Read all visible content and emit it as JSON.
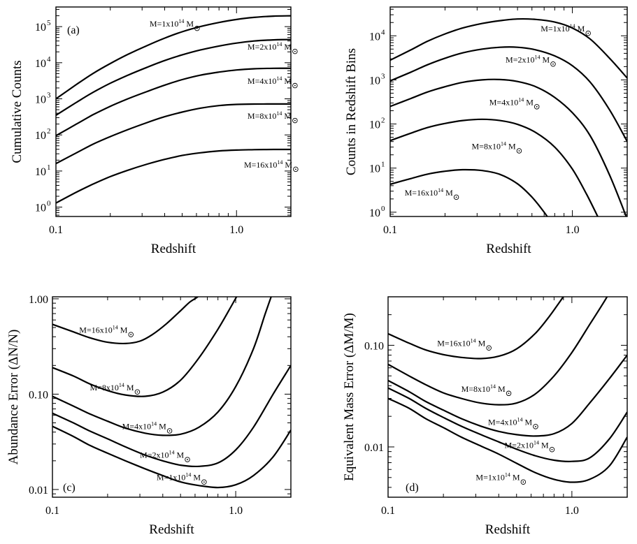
{
  "chart_data": [
    {
      "id": "a",
      "type": "line",
      "panel_label": "(a)",
      "xlabel": "Redshift",
      "ylabel": "Cumulative Counts",
      "xscale": "log",
      "yscale": "log",
      "xlim": [
        0.1,
        2.0
      ],
      "ylim": [
        0.55,
        350000
      ],
      "x_ticks": [
        {
          "value": 0.1,
          "label": "0.1"
        },
        {
          "value": 1.0,
          "label": "1.0"
        }
      ],
      "y_ticks": [
        {
          "value": 1,
          "base": "10",
          "exp": "0"
        },
        {
          "value": 10,
          "base": "10",
          "exp": "1"
        },
        {
          "value": 100,
          "base": "10",
          "exp": "2"
        },
        {
          "value": 1000,
          "base": "10",
          "exp": "3"
        },
        {
          "value": 10000,
          "base": "10",
          "exp": "4"
        },
        {
          "value": 100000,
          "base": "10",
          "exp": "5"
        }
      ],
      "series": [
        {
          "label": {
            "pre": "M=1x10",
            "exp": "14",
            "post": " M"
          },
          "label_at": [
            0.33,
            100000
          ],
          "x": [
            0.1,
            0.13,
            0.16,
            0.2,
            0.25,
            0.32,
            0.4,
            0.5,
            0.63,
            0.8,
            1.0,
            1.25,
            1.6,
            2.0
          ],
          "y": [
            1000,
            2500,
            5000,
            9500,
            17000,
            30000,
            48000,
            72000,
            100000,
            130000,
            158000,
            180000,
            195000,
            200000
          ]
        },
        {
          "label": {
            "pre": "M=2x10",
            "exp": "14",
            "post": " M"
          },
          "label_at": [
            1.15,
            23000
          ],
          "x": [
            0.1,
            0.13,
            0.16,
            0.2,
            0.25,
            0.32,
            0.4,
            0.5,
            0.63,
            0.8,
            1.0,
            1.25,
            1.6,
            2.0
          ],
          "y": [
            350,
            800,
            1500,
            2700,
            4500,
            7500,
            11500,
            16500,
            22500,
            29000,
            35000,
            40000,
            43000,
            44000
          ]
        },
        {
          "label": {
            "pre": "M=4x10",
            "exp": "14",
            "post": " M"
          },
          "label_at": [
            1.15,
            2600
          ],
          "x": [
            0.1,
            0.13,
            0.16,
            0.2,
            0.25,
            0.32,
            0.4,
            0.5,
            0.63,
            0.8,
            1.0,
            1.25,
            1.6,
            2.0
          ],
          "y": [
            95,
            200,
            360,
            620,
            1000,
            1600,
            2400,
            3400,
            4500,
            5500,
            6300,
            6800,
            7000,
            7000
          ]
        },
        {
          "label": {
            "pre": "M=8x10",
            "exp": "14",
            "post": " M"
          },
          "label_at": [
            1.15,
            280
          ],
          "x": [
            0.1,
            0.13,
            0.16,
            0.2,
            0.25,
            0.32,
            0.4,
            0.5,
            0.63,
            0.8,
            1.0,
            1.25,
            1.6,
            2.0
          ],
          "y": [
            16,
            32,
            55,
            90,
            140,
            220,
            320,
            430,
            550,
            650,
            700,
            715,
            720,
            720
          ]
        },
        {
          "label": {
            "pre": "M=16x10",
            "exp": "14",
            "post": " M"
          },
          "label_at": [
            1.1,
            12.5
          ],
          "x": [
            0.1,
            0.13,
            0.16,
            0.2,
            0.25,
            0.32,
            0.4,
            0.5,
            0.63,
            0.8,
            1.0,
            1.25,
            1.6,
            2.0
          ],
          "y": [
            1.3,
            2.6,
            4.3,
            7,
            10.5,
            15.5,
            21,
            27,
            32,
            36,
            38,
            39,
            39.5,
            39.5
          ]
        }
      ]
    },
    {
      "id": "b",
      "type": "line",
      "panel_label": "",
      "xlabel": "Redshift",
      "ylabel": "Counts in Redshift Bins",
      "xscale": "log",
      "yscale": "log",
      "xlim": [
        0.1,
        2.0
      ],
      "ylim": [
        0.8,
        45000
      ],
      "x_ticks": [
        {
          "value": 0.1,
          "label": "0.1"
        },
        {
          "value": 1.0,
          "label": "1.0"
        }
      ],
      "y_ticks": [
        {
          "value": 1,
          "base": "10",
          "exp": "0"
        },
        {
          "value": 10,
          "base": "10",
          "exp": "1"
        },
        {
          "value": 100,
          "base": "10",
          "exp": "2"
        },
        {
          "value": 1000,
          "base": "10",
          "exp": "3"
        },
        {
          "value": 10000,
          "base": "10",
          "exp": "4"
        }
      ],
      "series": [
        {
          "label": {
            "pre": "M=1x10",
            "exp": "14",
            "post": " M"
          },
          "label_at": [
            0.67,
            12500
          ],
          "x": [
            0.1,
            0.13,
            0.16,
            0.2,
            0.25,
            0.32,
            0.4,
            0.5,
            0.63,
            0.8,
            1.0,
            1.25,
            1.6,
            2.0
          ],
          "y": [
            2800,
            4800,
            7500,
            11000,
            15000,
            19000,
            22000,
            24000,
            23500,
            20500,
            15000,
            8500,
            3100,
            1100
          ]
        },
        {
          "label": {
            "pre": "M=2x10",
            "exp": "14",
            "post": " M"
          },
          "label_at": [
            0.43,
            2500
          ],
          "x": [
            0.1,
            0.13,
            0.16,
            0.2,
            0.25,
            0.32,
            0.4,
            0.5,
            0.63,
            0.8,
            1.0,
            1.25,
            1.6,
            2.0
          ],
          "y": [
            950,
            1500,
            2200,
            3100,
            4100,
            5000,
            5500,
            5500,
            4800,
            3500,
            2100,
            900,
            210,
            40
          ]
        },
        {
          "label": {
            "pre": "M=4x10",
            "exp": "14",
            "post": " M"
          },
          "label_at": [
            0.35,
            270
          ],
          "x": [
            0.1,
            0.13,
            0.16,
            0.2,
            0.25,
            0.32,
            0.4,
            0.5,
            0.63,
            0.8,
            1.0,
            1.25,
            1.6,
            2.0
          ],
          "y": [
            250,
            380,
            530,
            700,
            880,
            1000,
            1020,
            920,
            700,
            400,
            180,
            55,
            7,
            0.7
          ]
        },
        {
          "label": {
            "pre": "M=8x10",
            "exp": "14",
            "post": " M"
          },
          "label_at": [
            0.28,
            27
          ],
          "x": [
            0.1,
            0.13,
            0.16,
            0.2,
            0.25,
            0.32,
            0.4,
            0.5,
            0.63,
            0.8,
            1.0,
            1.2,
            1.4
          ],
          "y": [
            42,
            62,
            83,
            103,
            120,
            128,
            120,
            98,
            64,
            30,
            9.5,
            2.5,
            0.7
          ]
        },
        {
          "label": {
            "pre": "M=16x10",
            "exp": "14",
            "post": " M"
          },
          "label_at": [
            0.12,
            2.4
          ],
          "x": [
            0.1,
            0.13,
            0.16,
            0.2,
            0.25,
            0.32,
            0.4,
            0.5,
            0.6,
            0.7,
            0.8
          ],
          "y": [
            4.3,
            5.8,
            7.3,
            8.5,
            9.2,
            8.8,
            7.2,
            4.4,
            2.2,
            1.0,
            0.45
          ]
        }
      ]
    },
    {
      "id": "c",
      "type": "line",
      "panel_label": "(c)",
      "xlabel": "Redshift",
      "ylabel": "Abundance Error (ΔN/N)",
      "xscale": "log",
      "yscale": "log",
      "xlim": [
        0.1,
        2.0
      ],
      "ylim": [
        0.0083,
        1.05
      ],
      "x_ticks": [
        {
          "value": 0.1,
          "label": "0.1"
        },
        {
          "value": 1.0,
          "label": "1.0"
        }
      ],
      "y_ticks": [
        {
          "value": 0.01,
          "label": "0.01"
        },
        {
          "value": 0.1,
          "label": "0.10"
        },
        {
          "value": 1.0,
          "label": "1.00"
        }
      ],
      "series": [
        {
          "label": {
            "pre": "M=16x10",
            "exp": "14",
            "post": " M"
          },
          "label_at": [
            0.14,
            0.44
          ],
          "x": [
            0.1,
            0.13,
            0.16,
            0.2,
            0.25,
            0.3,
            0.35,
            0.42,
            0.5,
            0.56,
            0.62,
            0.66
          ],
          "y": [
            0.54,
            0.45,
            0.39,
            0.35,
            0.34,
            0.36,
            0.42,
            0.55,
            0.75,
            0.92,
            1.05,
            1.2
          ]
        },
        {
          "label": {
            "pre": "M=8x10",
            "exp": "14",
            "post": " M"
          },
          "label_at": [
            0.16,
            0.11
          ],
          "x": [
            0.1,
            0.13,
            0.16,
            0.2,
            0.25,
            0.32,
            0.4,
            0.5,
            0.63,
            0.8,
            0.95,
            1.05
          ],
          "y": [
            0.19,
            0.155,
            0.128,
            0.109,
            0.098,
            0.095,
            0.105,
            0.14,
            0.24,
            0.48,
            0.85,
            1.2
          ]
        },
        {
          "label": {
            "pre": "M=4x10",
            "exp": "14",
            "post": " M"
          },
          "label_at": [
            0.24,
            0.043
          ],
          "x": [
            0.1,
            0.13,
            0.16,
            0.2,
            0.25,
            0.32,
            0.4,
            0.5,
            0.63,
            0.8,
            1.0,
            1.25,
            1.45,
            1.6
          ],
          "y": [
            0.095,
            0.075,
            0.062,
            0.052,
            0.044,
            0.039,
            0.037,
            0.038,
            0.045,
            0.065,
            0.12,
            0.3,
            0.7,
            1.2
          ]
        },
        {
          "label": {
            "pre": "M=2x10",
            "exp": "14",
            "post": " M"
          },
          "label_at": [
            0.3,
            0.0215
          ],
          "x": [
            0.1,
            0.13,
            0.16,
            0.2,
            0.25,
            0.32,
            0.4,
            0.5,
            0.63,
            0.8,
            1.0,
            1.25,
            1.6,
            2.0
          ],
          "y": [
            0.063,
            0.05,
            0.041,
            0.034,
            0.028,
            0.023,
            0.02,
            0.018,
            0.0175,
            0.019,
            0.026,
            0.045,
            0.1,
            0.2
          ]
        },
        {
          "label": {
            "pre": "M=1x10",
            "exp": "14",
            "post": " M"
          },
          "label_at": [
            0.37,
            0.0125
          ],
          "x": [
            0.1,
            0.13,
            0.16,
            0.2,
            0.25,
            0.32,
            0.4,
            0.5,
            0.63,
            0.8,
            1.0,
            1.25,
            1.6,
            2.0
          ],
          "y": [
            0.046,
            0.036,
            0.029,
            0.024,
            0.02,
            0.0165,
            0.014,
            0.012,
            0.011,
            0.0105,
            0.0112,
            0.014,
            0.022,
            0.042
          ]
        }
      ]
    },
    {
      "id": "d",
      "type": "line",
      "panel_label": "(d)",
      "xlabel": "Redshift",
      "ylabel": "Equivalent Mass Error (ΔM/M)",
      "xscale": "log",
      "yscale": "log",
      "xlim": [
        0.1,
        2.0
      ],
      "ylim": [
        0.0032,
        0.3
      ],
      "x_ticks": [
        {
          "value": 0.1,
          "label": "0.1"
        },
        {
          "value": 1.0,
          "label": "1.0"
        }
      ],
      "y_ticks": [
        {
          "value": 0.01,
          "label": "0.01"
        },
        {
          "value": 0.1,
          "label": "0.10"
        }
      ],
      "series": [
        {
          "label": {
            "pre": "M=16x10",
            "exp": "14",
            "post": " M"
          },
          "label_at": [
            0.185,
            0.098
          ],
          "x": [
            0.1,
            0.13,
            0.16,
            0.2,
            0.25,
            0.32,
            0.4,
            0.5,
            0.63,
            0.75,
            0.85,
            0.92
          ],
          "y": [
            0.13,
            0.105,
            0.09,
            0.081,
            0.076,
            0.074,
            0.078,
            0.092,
            0.13,
            0.19,
            0.26,
            0.32
          ]
        },
        {
          "label": {
            "pre": "M=8x10",
            "exp": "14",
            "post": " M"
          },
          "label_at": [
            0.25,
            0.035
          ],
          "x": [
            0.1,
            0.13,
            0.16,
            0.2,
            0.25,
            0.32,
            0.4,
            0.5,
            0.63,
            0.8,
            1.0,
            1.25,
            1.5,
            1.6
          ],
          "y": [
            0.065,
            0.05,
            0.041,
            0.034,
            0.03,
            0.027,
            0.026,
            0.027,
            0.033,
            0.05,
            0.085,
            0.16,
            0.27,
            0.33
          ]
        },
        {
          "label": {
            "pre": "M=4x10",
            "exp": "14",
            "post": " M"
          },
          "label_at": [
            0.35,
            0.0165
          ],
          "x": [
            0.1,
            0.13,
            0.16,
            0.2,
            0.25,
            0.32,
            0.4,
            0.5,
            0.63,
            0.8,
            1.0,
            1.25,
            1.6,
            2.0
          ],
          "y": [
            0.045,
            0.035,
            0.028,
            0.023,
            0.019,
            0.016,
            0.0142,
            0.0132,
            0.0128,
            0.0135,
            0.017,
            0.027,
            0.047,
            0.08
          ]
        },
        {
          "label": {
            "pre": "M=2x10",
            "exp": "14",
            "post": " M"
          },
          "label_at": [
            0.43,
            0.0098
          ],
          "x": [
            0.1,
            0.13,
            0.16,
            0.2,
            0.25,
            0.32,
            0.4,
            0.5,
            0.63,
            0.8,
            1.0,
            1.25,
            1.6,
            2.0
          ],
          "y": [
            0.038,
            0.03,
            0.024,
            0.0195,
            0.016,
            0.0132,
            0.0112,
            0.0095,
            0.0082,
            0.0074,
            0.0072,
            0.0078,
            0.012,
            0.022
          ]
        },
        {
          "label": {
            "pre": "M=1x10",
            "exp": "14",
            "post": " M"
          },
          "label_at": [
            0.3,
            0.0047
          ],
          "x": [
            0.1,
            0.13,
            0.16,
            0.2,
            0.25,
            0.32,
            0.4,
            0.5,
            0.63,
            0.8,
            1.0,
            1.25,
            1.6,
            2.0
          ],
          "y": [
            0.03,
            0.024,
            0.019,
            0.0155,
            0.0125,
            0.0102,
            0.0085,
            0.0069,
            0.0056,
            0.0048,
            0.0045,
            0.0048,
            0.0065,
            0.0125
          ]
        }
      ]
    }
  ]
}
